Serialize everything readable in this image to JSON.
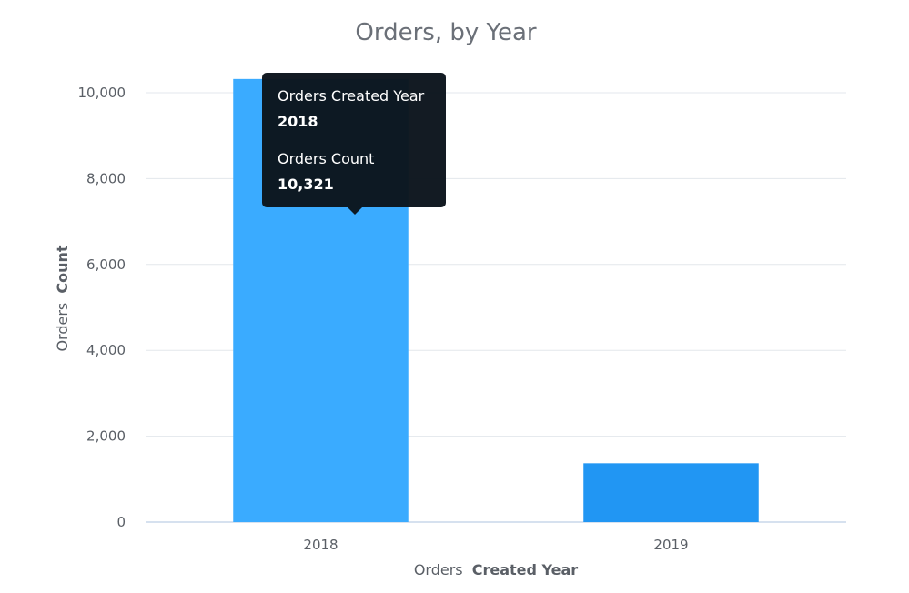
{
  "chart_data": {
    "type": "bar",
    "title": "Orders, by Year",
    "xlabel": {
      "prefix": "Orders",
      "bold": "Created Year"
    },
    "ylabel": {
      "prefix": "Orders",
      "bold": "Count"
    },
    "categories": [
      "2018",
      "2019"
    ],
    "series": [
      {
        "values": [
          10321,
          1370
        ]
      }
    ],
    "bar_colors": [
      "#3aabff",
      "#2196f3"
    ],
    "ylim": [
      0,
      10000
    ],
    "yticks": [
      0,
      2000,
      4000,
      6000,
      8000,
      10000
    ],
    "ytick_labels": [
      "0",
      "2,000",
      "4,000",
      "6,000",
      "8,000",
      "10,000"
    ],
    "grid": true,
    "tooltip": {
      "category_index": 0,
      "label1": "Orders Created Year",
      "value1": "2018",
      "label2": "Orders Count",
      "value2": "10,321",
      "background": "#0b141c"
    }
  }
}
